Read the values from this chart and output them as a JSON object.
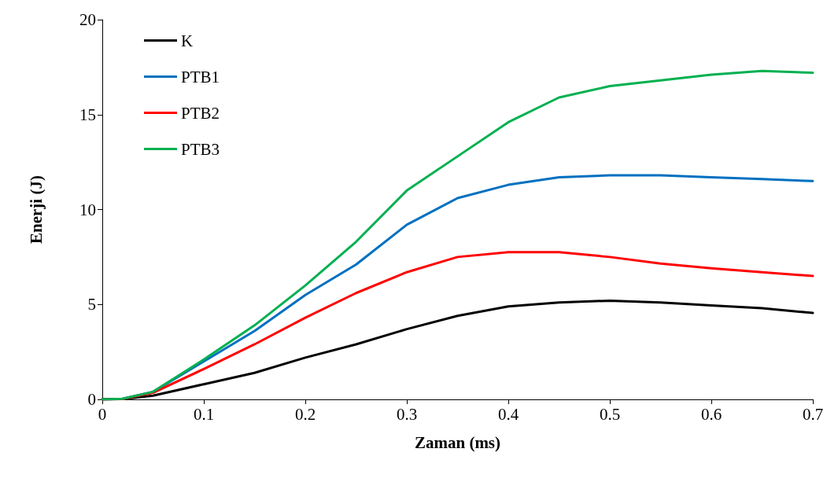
{
  "chart_data": {
    "type": "line",
    "xlabel": "Zaman (ms)",
    "ylabel": "Enerji (J)",
    "x": [
      0,
      0.02,
      0.05,
      0.1,
      0.15,
      0.2,
      0.25,
      0.3,
      0.35,
      0.4,
      0.45,
      0.5,
      0.55,
      0.6,
      0.65,
      0.7
    ],
    "series": [
      {
        "name": "K",
        "color": "#000000",
        "values": [
          0,
          0.02,
          0.2,
          0.8,
          1.4,
          2.2,
          2.9,
          3.7,
          4.4,
          4.9,
          5.1,
          5.2,
          5.1,
          4.95,
          4.8,
          4.55
        ]
      },
      {
        "name": "PTB1",
        "color": "#0070c0",
        "values": [
          0,
          0.03,
          0.4,
          2.0,
          3.6,
          5.5,
          7.1,
          9.2,
          10.6,
          11.3,
          11.7,
          11.8,
          11.8,
          11.7,
          11.6,
          11.5
        ]
      },
      {
        "name": "PTB2",
        "color": "#ff0000",
        "values": [
          0,
          0.02,
          0.35,
          1.6,
          2.9,
          4.3,
          5.6,
          6.7,
          7.5,
          7.75,
          7.75,
          7.5,
          7.15,
          6.9,
          6.7,
          6.5
        ]
      },
      {
        "name": "PTB3",
        "color": "#00b050",
        "values": [
          0,
          0.03,
          0.4,
          2.1,
          3.9,
          6.0,
          8.3,
          11.0,
          12.8,
          14.6,
          15.9,
          16.5,
          16.8,
          17.1,
          17.3,
          17.2
        ]
      }
    ],
    "xlim": [
      0,
      0.7
    ],
    "xticks": [
      0,
      0.1,
      0.2,
      0.3,
      0.4,
      0.5,
      0.6,
      0.7
    ],
    "ylim": [
      0,
      20
    ],
    "yticks": [
      0,
      5,
      10,
      15,
      20
    ],
    "grid": false,
    "legend": "top left",
    "marker": "none",
    "line_style": "solid"
  }
}
